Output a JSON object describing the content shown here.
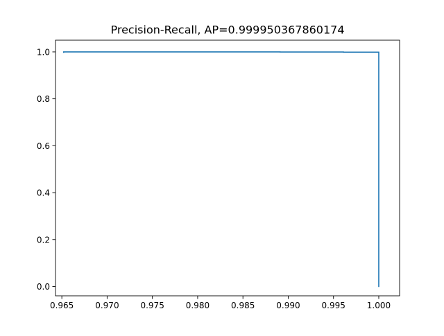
{
  "chart_data": {
    "type": "line",
    "title": "Precision-Recall, AP=0.999950367860174",
    "xlabel": "",
    "ylabel": "",
    "xlim": [
      0.9643,
      1.0023
    ],
    "ylim": [
      -0.04,
      1.05
    ],
    "xticks": [
      0.965,
      0.97,
      0.975,
      0.98,
      0.985,
      0.99,
      0.995,
      1.0
    ],
    "xtick_labels": [
      "0.965",
      "0.970",
      "0.975",
      "0.980",
      "0.985",
      "0.990",
      "0.995",
      "1.000"
    ],
    "yticks": [
      0.0,
      0.2,
      0.4,
      0.6,
      0.8,
      1.0
    ],
    "ytick_labels": [
      "0.0",
      "0.2",
      "0.4",
      "0.6",
      "0.8",
      "1.0"
    ],
    "grid": false,
    "series": [
      {
        "color": "#1f77b4",
        "x": [
          0.9652,
          0.9652,
          0.9891,
          0.9891,
          0.9961,
          0.9961,
          1.0,
          1.0
        ],
        "y": [
          0.9985,
          1.0,
          1.0,
          0.9995,
          0.9995,
          0.999,
          0.999,
          0.0
        ]
      }
    ]
  }
}
